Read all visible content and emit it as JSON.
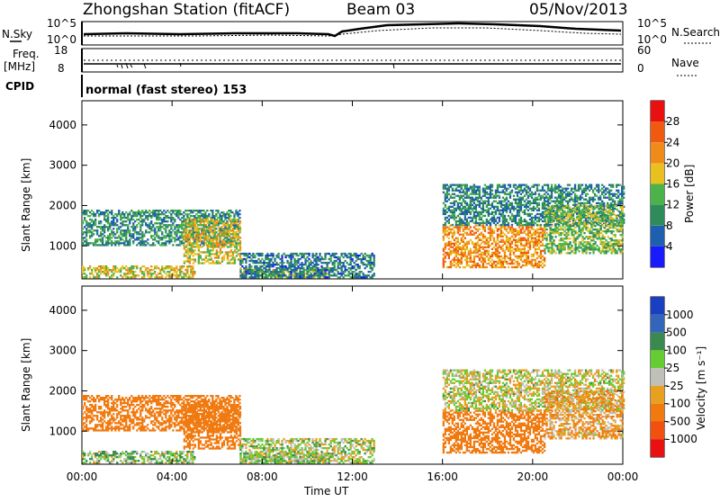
{
  "header": {
    "station": "Zhongshan Station (fitACF)",
    "beam": "Beam 03",
    "date": "05/Nov/2013"
  },
  "noise_panel": {
    "left_label": "N.Sky",
    "right_label": "N.Search",
    "left_ticks": [
      "10^5",
      "10^0"
    ],
    "right_ticks": [
      "10^5",
      "10^0"
    ]
  },
  "freq_panel": {
    "left_label_1": "Freq.",
    "left_label_2": "[MHz]",
    "left_ticks": [
      "18",
      "8"
    ],
    "right_label": "Nave",
    "right_ticks": [
      "60",
      "0"
    ]
  },
  "cpid": {
    "label": "CPID",
    "mode": "normal (fast stereo) 153"
  },
  "power_panel": {
    "ylabel": "Slant Range [km]",
    "yticks": [
      "1000",
      "2000",
      "3000",
      "4000"
    ],
    "colorbar_label": "Power [dB]",
    "colorbar_ticks": [
      "4",
      "8",
      "12",
      "16",
      "20",
      "24",
      "28"
    ]
  },
  "velocity_panel": {
    "ylabel": "Slant Range [km]",
    "yticks": [
      "1000",
      "2000",
      "3000",
      "4000"
    ],
    "colorbar_label": "Velocity [m s⁻¹]",
    "colorbar_ticks": [
      "1000",
      "500",
      "100",
      "25",
      "-25",
      "-100",
      "-500",
      "-1000"
    ]
  },
  "xaxis": {
    "label": "Time UT",
    "ticks": [
      "00:00",
      "04:00",
      "08:00",
      "12:00",
      "16:00",
      "20:00",
      "00:00"
    ]
  },
  "colors": {
    "power_scale": [
      "#1a1aff",
      "#1f5fb0",
      "#2e8c5a",
      "#4cb34a",
      "#e8c020",
      "#f08a1a",
      "#f05a10",
      "#e81010"
    ],
    "velocity_scale": [
      "#1a3fc0",
      "#3366bb",
      "#3a8a50",
      "#66cc33",
      "#c0c0b8",
      "#e8a020",
      "#f07a10",
      "#f05010",
      "#e81010"
    ]
  },
  "chart_data": {
    "type": "heatmap",
    "title": "Zhongshan Station (fitACF) Beam 03 05/Nov/2013",
    "xlabel": "Time UT",
    "ylabel": "Slant Range [km]",
    "xlim": [
      "00:00",
      "24:00"
    ],
    "ylim": [
      180,
      4600
    ],
    "power_range_db": [
      0,
      30
    ],
    "velocity_range_ms": [
      -1000,
      1000
    ],
    "echo_regions": [
      {
        "t_start": 0.0,
        "t_end": 7.0,
        "r_low": 1000,
        "r_high": 1900,
        "power_db": 10,
        "velocity": -250
      },
      {
        "t_start": 0.0,
        "t_end": 5.0,
        "r_low": 200,
        "r_high": 500,
        "power_db": 18,
        "velocity": 60
      },
      {
        "t_start": 4.5,
        "t_end": 7.0,
        "r_low": 550,
        "r_high": 1650,
        "power_db": 18,
        "velocity": -300
      },
      {
        "t_start": 7.0,
        "t_end": 11.0,
        "r_low": 200,
        "r_high": 450,
        "power_db": 16,
        "velocity": 60
      },
      {
        "t_start": 7.0,
        "t_end": 13.0,
        "r_low": 200,
        "r_high": 800,
        "power_db": 8,
        "velocity": 30
      },
      {
        "t_start": 16.0,
        "t_end": 20.5,
        "r_low": 450,
        "r_high": 1500,
        "power_db": 22,
        "velocity": -350
      },
      {
        "t_start": 16.0,
        "t_end": 24.0,
        "r_low": 1500,
        "r_high": 2500,
        "power_db": 9,
        "velocity": 0
      },
      {
        "t_start": 20.5,
        "t_end": 24.0,
        "r_low": 800,
        "r_high": 2000,
        "power_db": 14,
        "velocity": -80
      }
    ]
  }
}
